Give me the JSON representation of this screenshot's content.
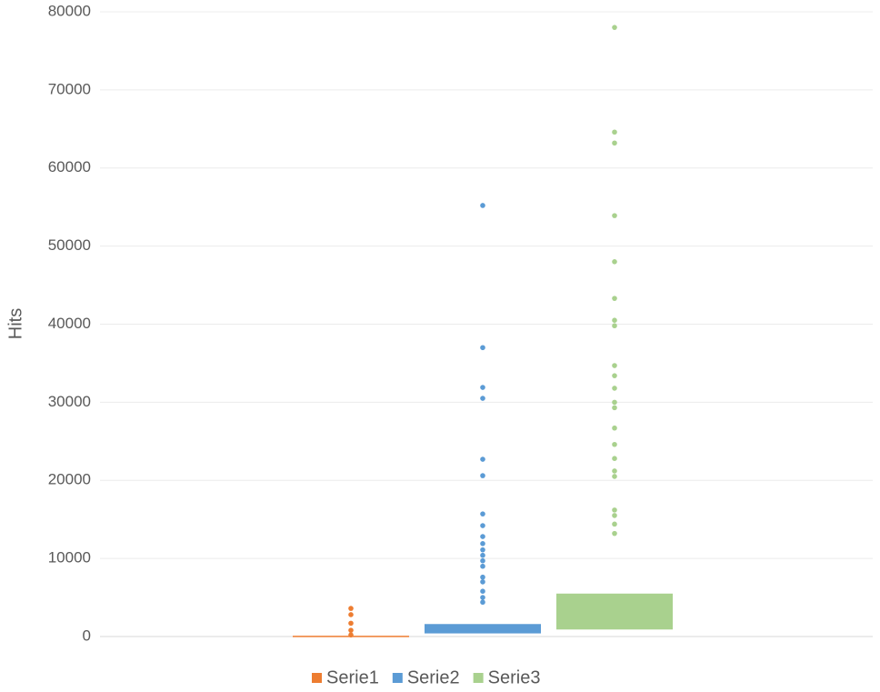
{
  "chart_data": {
    "type": "box",
    "y_label": "Hits",
    "ylim": [
      0,
      80000
    ],
    "yticks": [
      0,
      10000,
      20000,
      30000,
      40000,
      50000,
      60000,
      70000,
      80000
    ],
    "grid": true,
    "legend": "bottom",
    "series": [
      {
        "name": "Serie1",
        "color": "#ed7d31",
        "q1": 0,
        "q3": 100,
        "outliers": [
          3600,
          2800,
          1700,
          800,
          200
        ]
      },
      {
        "name": "Serie2",
        "color": "#5b9bd5",
        "q1": 400,
        "q3": 1600,
        "outliers": [
          55200,
          37000,
          31900,
          30500,
          22700,
          20600,
          15700,
          14200,
          12800,
          11900,
          11100,
          10400,
          9700,
          9000,
          7600,
          7000,
          5800,
          5000,
          4400
        ]
      },
      {
        "name": "Serie3",
        "color": "#a9d18e",
        "q1": 900,
        "q3": 5500,
        "outliers": [
          78000,
          64600,
          63200,
          53900,
          48000,
          43300,
          40500,
          39800,
          34700,
          33400,
          31800,
          30000,
          29300,
          26700,
          24600,
          22800,
          21200,
          20500,
          16200,
          15500,
          14400,
          13200
        ]
      }
    ]
  }
}
